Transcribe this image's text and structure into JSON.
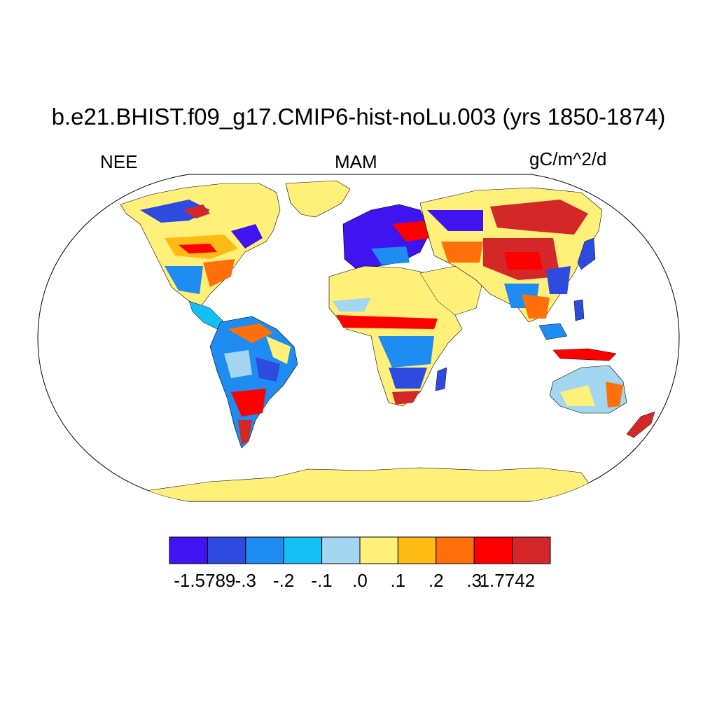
{
  "figure": {
    "title": "b.e21.BHIST.f09_g17.CMIP6-hist-noLu.003 (yrs 1850-1874)",
    "variable": "NEE",
    "season": "MAM",
    "units": "gC/m^2/d"
  },
  "map": {
    "projection": "Robinson",
    "background_color": "#ffffff",
    "outline_color": "#000000"
  },
  "colorbar": {
    "colors": [
      "#3f14f0",
      "#2e4be0",
      "#1e8cf0",
      "#13bff5",
      "#a3d6f0",
      "#fff07a",
      "#ffbb14",
      "#ff700a",
      "#ff0000",
      "#d42828"
    ],
    "labels": [
      "-1.5789",
      "-.3",
      "-.2",
      "-.1",
      ".0",
      ".1",
      ".2",
      ".3",
      "1.7742"
    ],
    "min": -1.5789,
    "max": 1.7742
  }
}
